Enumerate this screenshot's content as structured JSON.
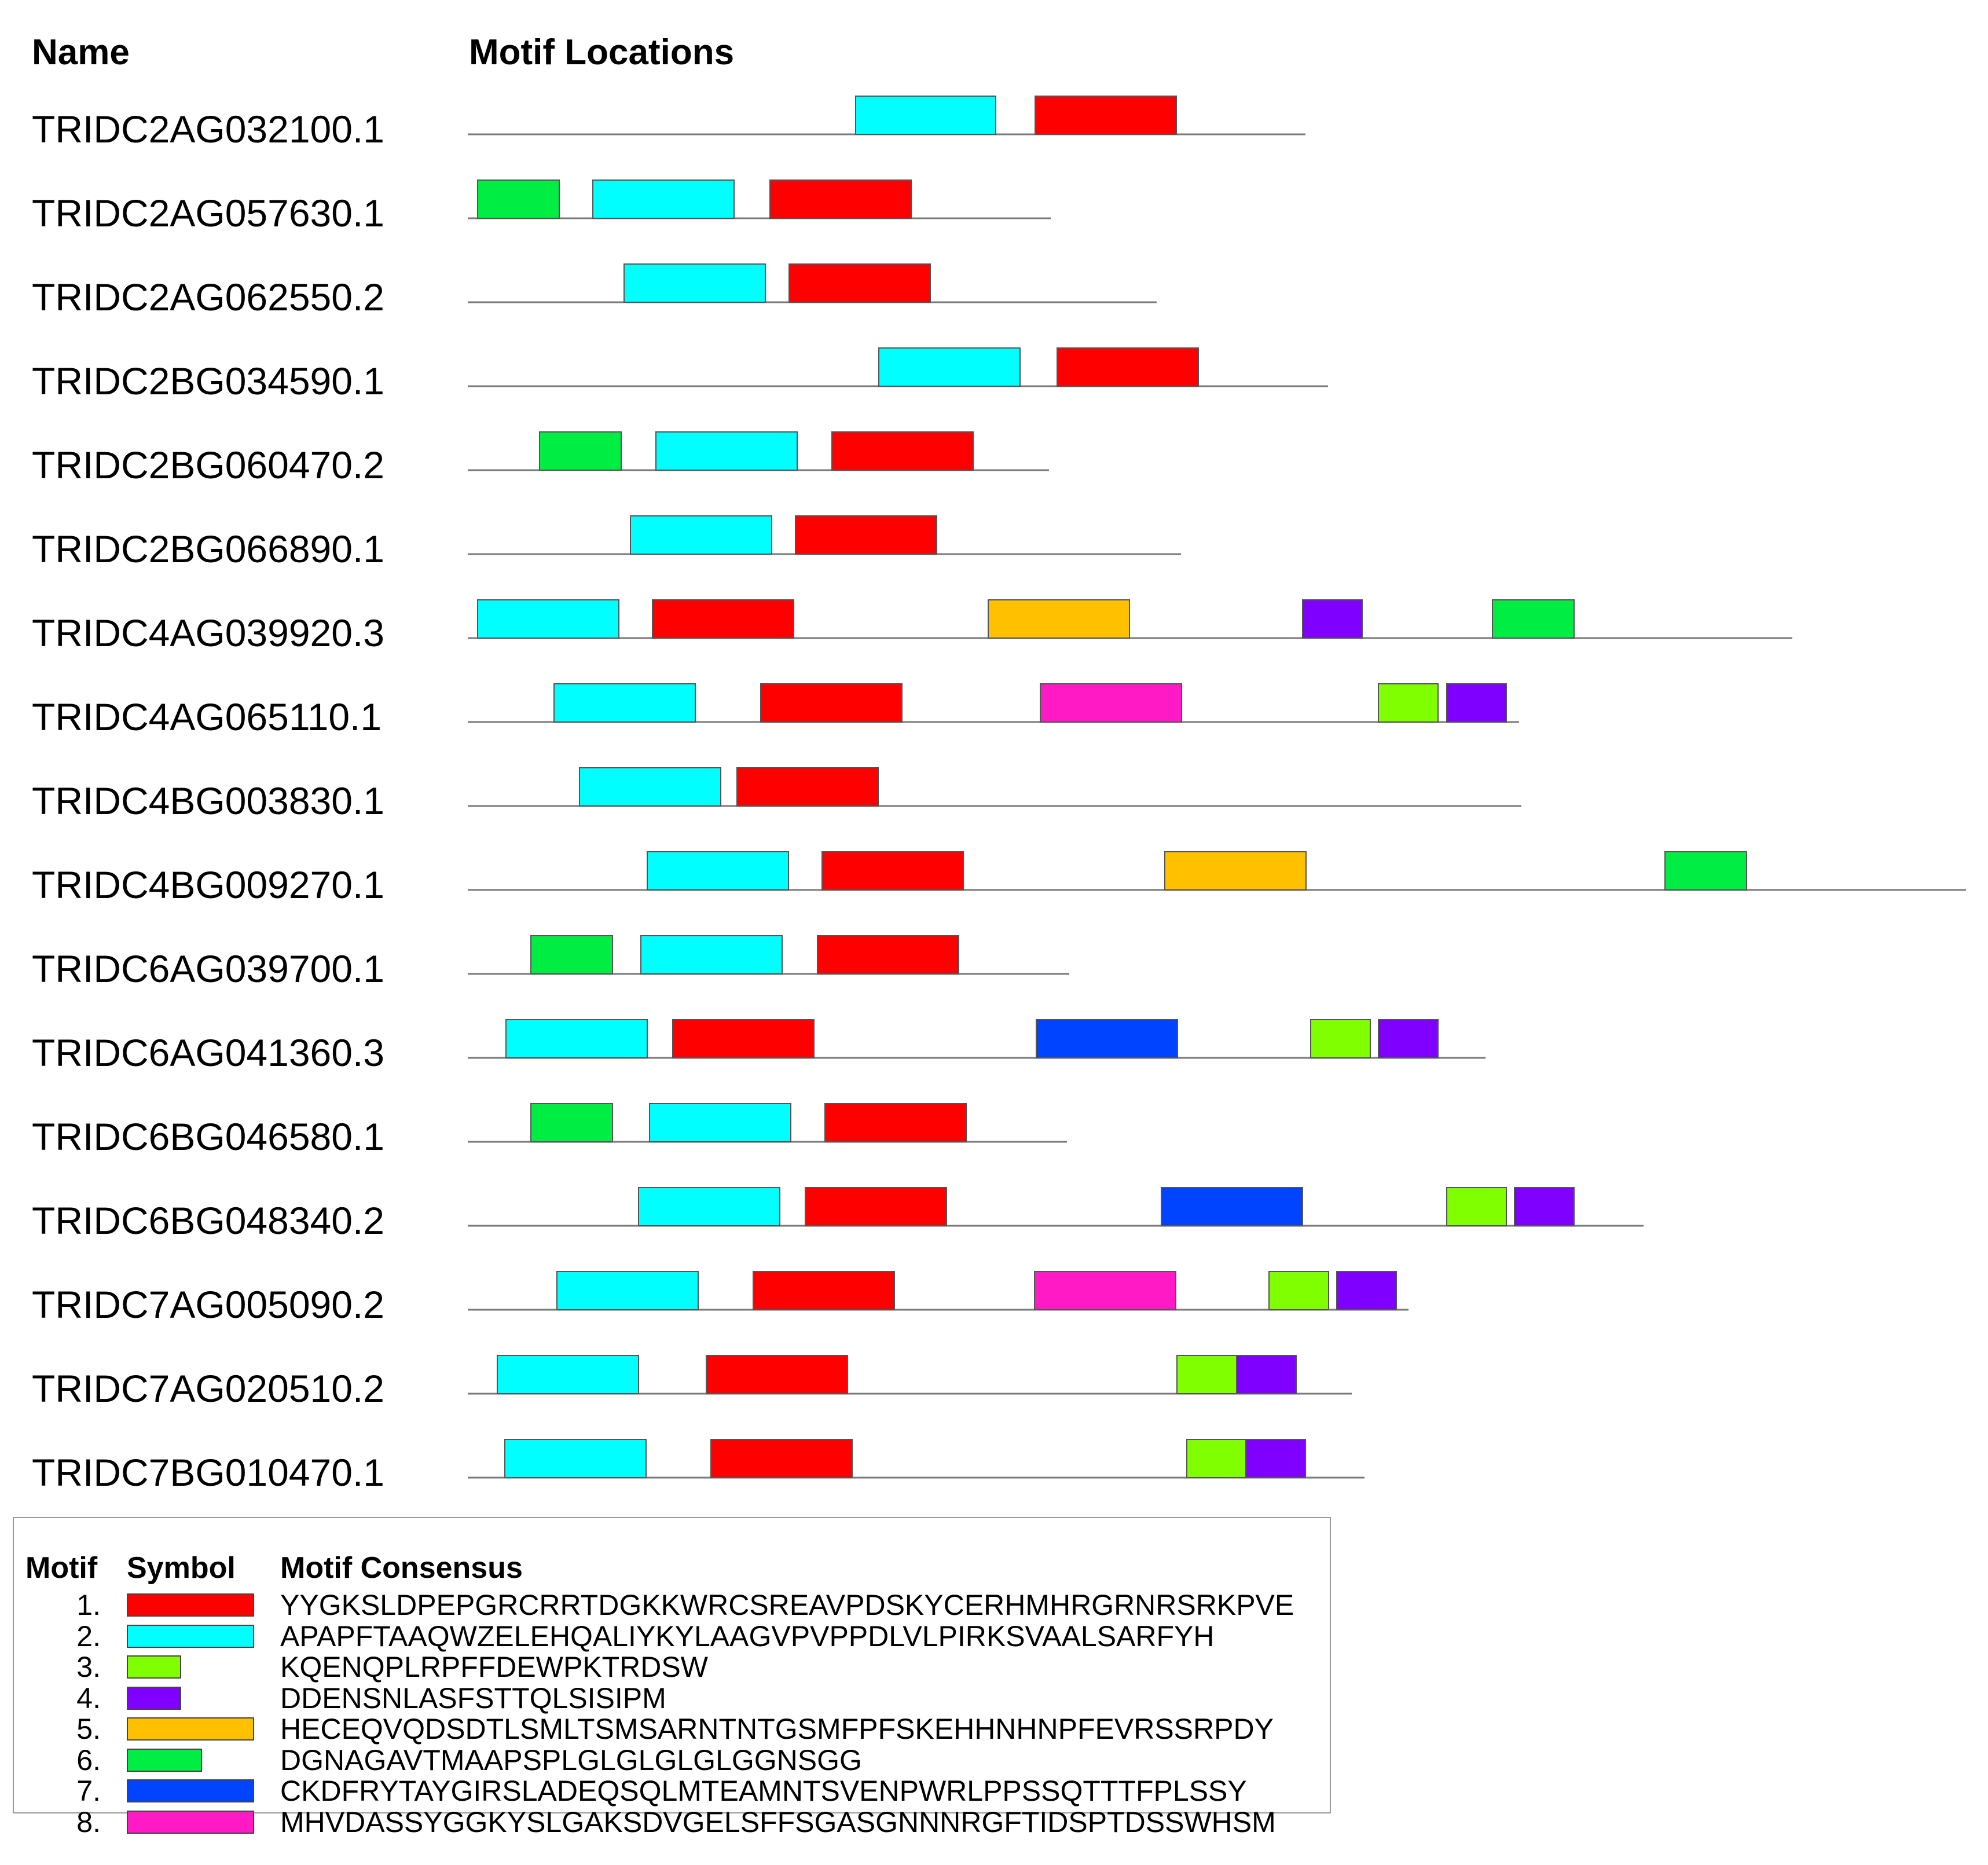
{
  "headers": {
    "name": "Name",
    "locations": "Motif Locations"
  },
  "motif_colors": {
    "1": "#ff0000",
    "2": "#00ffff",
    "3": "#80ff00",
    "4": "#8000ff",
    "5": "#ffc000",
    "6": "#00ee44",
    "7": "#0044ff",
    "8": "#ff1ac6"
  },
  "sequences": [
    {
      "name": "TRIDC2AG032100.1",
      "motifs": [
        2,
        1
      ]
    },
    {
      "name": "TRIDC2AG057630.1",
      "motifs": [
        6,
        2,
        1
      ]
    },
    {
      "name": "TRIDC2AG062550.2",
      "motifs": [
        2,
        1
      ]
    },
    {
      "name": "TRIDC2BG034590.1",
      "motifs": [
        2,
        1
      ]
    },
    {
      "name": "TRIDC2BG060470.2",
      "motifs": [
        6,
        2,
        1
      ]
    },
    {
      "name": "TRIDC2BG066890.1",
      "motifs": [
        2,
        1
      ]
    },
    {
      "name": "TRIDC4AG039920.3",
      "motifs": [
        2,
        1,
        5,
        4,
        6
      ]
    },
    {
      "name": "TRIDC4AG065110.1",
      "motifs": [
        2,
        1,
        8,
        3,
        4
      ]
    },
    {
      "name": "TRIDC4BG003830.1",
      "motifs": [
        2,
        1
      ]
    },
    {
      "name": "TRIDC4BG009270.1",
      "motifs": [
        2,
        1,
        5,
        6
      ]
    },
    {
      "name": "TRIDC6AG039700.1",
      "motifs": [
        6,
        2,
        1
      ]
    },
    {
      "name": "TRIDC6AG041360.3",
      "motifs": [
        2,
        1,
        7,
        3,
        4
      ]
    },
    {
      "name": "TRIDC6BG046580.1",
      "motifs": [
        6,
        2,
        1
      ]
    },
    {
      "name": "TRIDC6BG048340.2",
      "motifs": [
        2,
        1,
        7,
        3,
        4
      ]
    },
    {
      "name": "TRIDC7AG005090.2",
      "motifs": [
        2,
        1,
        8,
        3,
        4
      ]
    },
    {
      "name": "TRIDC7AG020510.2",
      "motifs": [
        2,
        1,
        3,
        4
      ]
    },
    {
      "name": "TRIDC7BG010470.1",
      "motifs": [
        2,
        1,
        3,
        4
      ]
    }
  ],
  "legend": {
    "headers": {
      "motif": "Motif",
      "symbol": "Symbol",
      "consensus": "Motif Consensus"
    },
    "rows": [
      {
        "num": "1.",
        "motif": 1,
        "consensus": "YYGKSLDPEPGRCRRTDGKKWRCSREAVPDSKYCERHMHRGRNRSRKPVE"
      },
      {
        "num": "2.",
        "motif": 2,
        "consensus": "APAPFTAAQWZELEHQALIYKYLAAGVPVPPDLVLPIRKSVAALSARFYH"
      },
      {
        "num": "3.",
        "motif": 3,
        "consensus": "KQENQPLRPFFDEWPKTRDSW"
      },
      {
        "num": "4.",
        "motif": 4,
        "consensus": "DDENSNLASFSTTQLSISIPM"
      },
      {
        "num": "5.",
        "motif": 5,
        "consensus": "HECEQVQDSDTLSMLTSMSARNTNTGSMFPFSKEHHNHNPFEVRSSRPDY"
      },
      {
        "num": "6.",
        "motif": 6,
        "consensus": "DGNAGAVTMAAPSPLGLGLGLGLGGNSGG"
      },
      {
        "num": "7.",
        "motif": 7,
        "consensus": "CKDFRYTAYGIRSLADEQSQLMTEAMNTSVENPWRLPPSSQTTTFPLSSY"
      },
      {
        "num": "8.",
        "motif": 8,
        "consensus": "MHVDASSYGGKYSLGAKSDVGELSFFSGASGNNNRGFTIDSPTDSSWHSM"
      }
    ]
  }
}
